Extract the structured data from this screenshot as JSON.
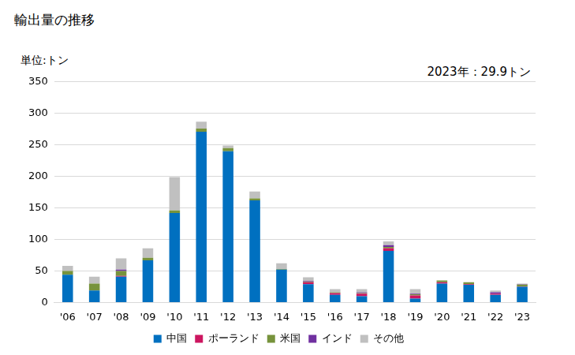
{
  "chart_data": {
    "type": "bar",
    "title": "輸出量の推移",
    "y_label": "単位:トン",
    "annotations": [
      "2023年：29.9トン"
    ],
    "categories": [
      "'06",
      "'07",
      "'08",
      "'09",
      "'10",
      "'11",
      "'12",
      "'13",
      "'14",
      "'15",
      "'16",
      "'17",
      "'18",
      "'19",
      "'20",
      "'21",
      "'22",
      "'23"
    ],
    "series": [
      {
        "name": "中国",
        "color": "#0070c0",
        "values": [
          44,
          19,
          41,
          67,
          142,
          271,
          240,
          162,
          52,
          29,
          12,
          10,
          82,
          6,
          30,
          28,
          12,
          25
        ]
      },
      {
        "name": "ポーランド",
        "color": "#cc1660",
        "values": [
          0,
          0,
          1,
          0,
          0,
          0,
          0,
          0,
          0,
          3,
          3,
          4,
          4,
          5,
          2,
          1,
          2,
          0.5
        ]
      },
      {
        "name": "米国",
        "color": "#77933c",
        "values": [
          6,
          11,
          8,
          4,
          4,
          5,
          5,
          3,
          1,
          1,
          1,
          1,
          2,
          2,
          3,
          3,
          0,
          3
        ]
      },
      {
        "name": "インド",
        "color": "#7030a0",
        "values": [
          0,
          0,
          2,
          0,
          0,
          0,
          0,
          0,
          0,
          1,
          0,
          1,
          3,
          1,
          0,
          0,
          2,
          0.5
        ]
      },
      {
        "name": "その他",
        "color": "#c0c0c0",
        "values": [
          8,
          11,
          18,
          15,
          53,
          11,
          4,
          11,
          9,
          6,
          5,
          5,
          6,
          7,
          0,
          0,
          3,
          0.9
        ]
      }
    ],
    "ylim": [
      0,
      350
    ],
    "yticks": [
      0,
      50,
      100,
      150,
      200,
      250,
      300,
      350
    ],
    "stacked": true,
    "grid": true,
    "legend": "bottom"
  }
}
